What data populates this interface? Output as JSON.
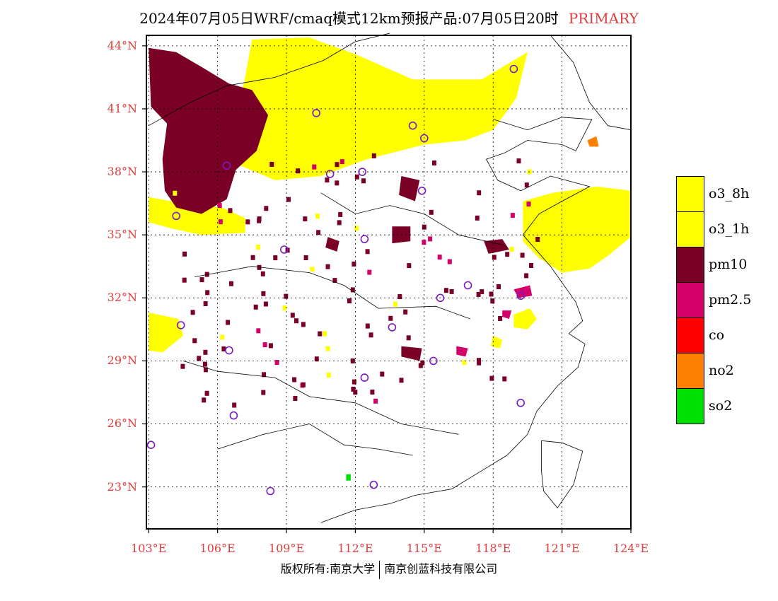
{
  "title": {
    "text": "2024年07月05日WRF/cmaq模式12km预报产品:07月05日20时",
    "tag": "PRIMARY"
  },
  "colors": {
    "label_red": "#e03c3c",
    "o3_yellow": "#ffff00",
    "pm10": "#7a0026",
    "pm25": "#d4006a",
    "co": "#ff0000",
    "no2": "#ff7f00",
    "so2": "#00e000",
    "station_circle": "#7a1ac6"
  },
  "map": {
    "lon_range": [
      102.9,
      124.0
    ],
    "lat_range": [
      21.0,
      44.5
    ],
    "lat_ticks": [
      {
        "value": 44,
        "label": "44°N"
      },
      {
        "value": 41,
        "label": "41°N"
      },
      {
        "value": 38,
        "label": "38°N"
      },
      {
        "value": 35,
        "label": "35°N"
      },
      {
        "value": 32,
        "label": "32°N"
      },
      {
        "value": 29,
        "label": "29°N"
      },
      {
        "value": 26,
        "label": "26°N"
      },
      {
        "value": 23,
        "label": "23°N"
      }
    ],
    "lon_ticks": [
      {
        "value": 103,
        "label": "103°E"
      },
      {
        "value": 106,
        "label": "106°E"
      },
      {
        "value": 109,
        "label": "109°E"
      },
      {
        "value": 112,
        "label": "112°E"
      },
      {
        "value": 115,
        "label": "115°E"
      },
      {
        "value": 118,
        "label": "118°E"
      },
      {
        "value": 121,
        "label": "121°E"
      },
      {
        "value": 124,
        "label": "124°E"
      }
    ],
    "stations": [
      [
        118.9,
        42.9
      ],
      [
        110.3,
        40.8
      ],
      [
        114.5,
        40.2
      ],
      [
        115.0,
        39.6
      ],
      [
        106.4,
        38.3
      ],
      [
        110.9,
        37.9
      ],
      [
        112.3,
        38.0
      ],
      [
        114.9,
        37.1
      ],
      [
        104.2,
        35.9
      ],
      [
        112.4,
        34.8
      ],
      [
        108.9,
        34.3
      ],
      [
        116.9,
        32.6
      ],
      [
        119.2,
        32.1
      ],
      [
        115.7,
        32.0
      ],
      [
        104.4,
        30.7
      ],
      [
        113.6,
        30.6
      ],
      [
        106.5,
        29.5
      ],
      [
        115.4,
        29.0
      ],
      [
        112.4,
        28.2
      ],
      [
        119.2,
        27.0
      ],
      [
        106.7,
        26.4
      ],
      [
        103.1,
        25.0
      ],
      [
        108.3,
        22.8
      ],
      [
        112.8,
        23.1
      ]
    ],
    "pollutant_areas": [
      {
        "species": "o3",
        "polygon": [
          [
            107.5,
            44.3
          ],
          [
            110.0,
            44.4
          ],
          [
            112.0,
            43.6
          ],
          [
            114.5,
            42.4
          ],
          [
            117.5,
            42.4
          ],
          [
            119.5,
            43.7
          ],
          [
            119.0,
            41.5
          ],
          [
            118.0,
            40.0
          ],
          [
            116.8,
            39.5
          ],
          [
            115.0,
            39.3
          ],
          [
            112.5,
            38.6
          ],
          [
            110.5,
            37.8
          ],
          [
            108.5,
            37.6
          ],
          [
            107.0,
            38.3
          ],
          [
            106.5,
            39.3
          ],
          [
            106.8,
            40.6
          ],
          [
            107.2,
            42.5
          ]
        ]
      },
      {
        "species": "o3",
        "polygon": [
          [
            103.0,
            36.8
          ],
          [
            104.5,
            36.5
          ],
          [
            106.2,
            36.3
          ],
          [
            107.2,
            35.8
          ],
          [
            107.2,
            35.1
          ],
          [
            105.3,
            35.0
          ],
          [
            104.0,
            35.3
          ],
          [
            103.0,
            35.6
          ]
        ]
      },
      {
        "species": "o3",
        "polygon": [
          [
            103.0,
            31.3
          ],
          [
            104.3,
            31.0
          ],
          [
            104.5,
            30.2
          ],
          [
            103.6,
            29.4
          ],
          [
            103.0,
            29.5
          ]
        ]
      },
      {
        "species": "o3",
        "polygon": [
          [
            119.3,
            36.6
          ],
          [
            120.6,
            37.0
          ],
          [
            122.5,
            37.3
          ],
          [
            124.0,
            37.1
          ],
          [
            124.0,
            34.9
          ],
          [
            123.0,
            34.0
          ],
          [
            122.2,
            33.4
          ],
          [
            121.0,
            33.2
          ],
          [
            120.0,
            33.9
          ],
          [
            119.3,
            34.7
          ]
        ]
      },
      {
        "species": "o3",
        "polygon": [
          [
            118.9,
            31.2
          ],
          [
            119.6,
            31.5
          ],
          [
            119.9,
            31.0
          ],
          [
            119.5,
            30.5
          ],
          [
            118.9,
            30.6
          ]
        ]
      },
      {
        "species": "o3",
        "polygon": [
          [
            118.0,
            30.2
          ],
          [
            118.4,
            30.0
          ],
          [
            118.3,
            29.6
          ],
          [
            117.9,
            29.7
          ]
        ]
      },
      {
        "species": "pm10",
        "polygon": [
          [
            103.0,
            43.9
          ],
          [
            104.2,
            43.7
          ],
          [
            105.3,
            43.0
          ],
          [
            106.5,
            42.2
          ],
          [
            107.5,
            41.9
          ],
          [
            108.2,
            40.7
          ],
          [
            107.7,
            39.0
          ],
          [
            106.8,
            38.1
          ],
          [
            106.4,
            36.7
          ],
          [
            105.3,
            36.0
          ],
          [
            104.2,
            36.3
          ],
          [
            103.7,
            37.1
          ],
          [
            103.6,
            38.6
          ],
          [
            103.8,
            40.3
          ],
          [
            103.1,
            41.1
          ]
        ]
      },
      {
        "species": "pm10",
        "polygon": [
          [
            114.0,
            37.8
          ],
          [
            114.8,
            37.6
          ],
          [
            114.6,
            36.6
          ],
          [
            113.9,
            36.9
          ]
        ]
      },
      {
        "species": "pm10",
        "polygon": [
          [
            113.6,
            35.4
          ],
          [
            114.4,
            35.4
          ],
          [
            114.4,
            34.7
          ],
          [
            113.6,
            34.6
          ]
        ]
      },
      {
        "species": "pm10",
        "polygon": [
          [
            117.6,
            34.7
          ],
          [
            118.4,
            34.8
          ],
          [
            118.7,
            34.3
          ],
          [
            117.8,
            34.1
          ]
        ]
      },
      {
        "species": "pm10",
        "polygon": [
          [
            110.8,
            34.9
          ],
          [
            111.3,
            34.7
          ],
          [
            111.2,
            34.2
          ],
          [
            110.7,
            34.4
          ]
        ]
      },
      {
        "species": "pm10",
        "polygon": [
          [
            114.0,
            29.7
          ],
          [
            114.9,
            29.6
          ],
          [
            114.8,
            29.0
          ],
          [
            114.0,
            29.2
          ]
        ]
      },
      {
        "species": "pm25",
        "polygon": [
          [
            116.4,
            29.7
          ],
          [
            116.9,
            29.6
          ],
          [
            116.8,
            29.2
          ],
          [
            116.4,
            29.3
          ]
        ]
      },
      {
        "species": "pm25",
        "polygon": [
          [
            118.9,
            32.4
          ],
          [
            119.6,
            32.6
          ],
          [
            119.7,
            32.1
          ],
          [
            119.1,
            32.0
          ]
        ]
      },
      {
        "species": "pm25",
        "polygon": [
          [
            118.4,
            31.4
          ],
          [
            118.8,
            31.4
          ],
          [
            118.7,
            31.0
          ],
          [
            118.4,
            31.1
          ]
        ]
      },
      {
        "species": "no2",
        "polygon": [
          [
            122.1,
            39.5
          ],
          [
            122.5,
            39.7
          ],
          [
            122.6,
            39.2
          ],
          [
            122.2,
            39.2
          ]
        ]
      },
      {
        "species": "so2",
        "polygon": [
          [
            111.6,
            23.6
          ],
          [
            111.8,
            23.6
          ],
          [
            111.8,
            23.3
          ],
          [
            111.6,
            23.3
          ]
        ]
      }
    ]
  },
  "legend": [
    {
      "label": "o3_8h",
      "color": "#ffff00"
    },
    {
      "label": "o3_1h",
      "color": "#ffff00"
    },
    {
      "label": "pm10",
      "color": "#7a0026"
    },
    {
      "label": "pm2.5",
      "color": "#d4006a"
    },
    {
      "label": "co",
      "color": "#ff0000"
    },
    {
      "label": "no2",
      "color": "#ff7f00"
    },
    {
      "label": "so2",
      "color": "#00e000"
    }
  ],
  "footer": {
    "left": "版权所有:南京大学",
    "right": "南京创蓝科技有限公司"
  }
}
